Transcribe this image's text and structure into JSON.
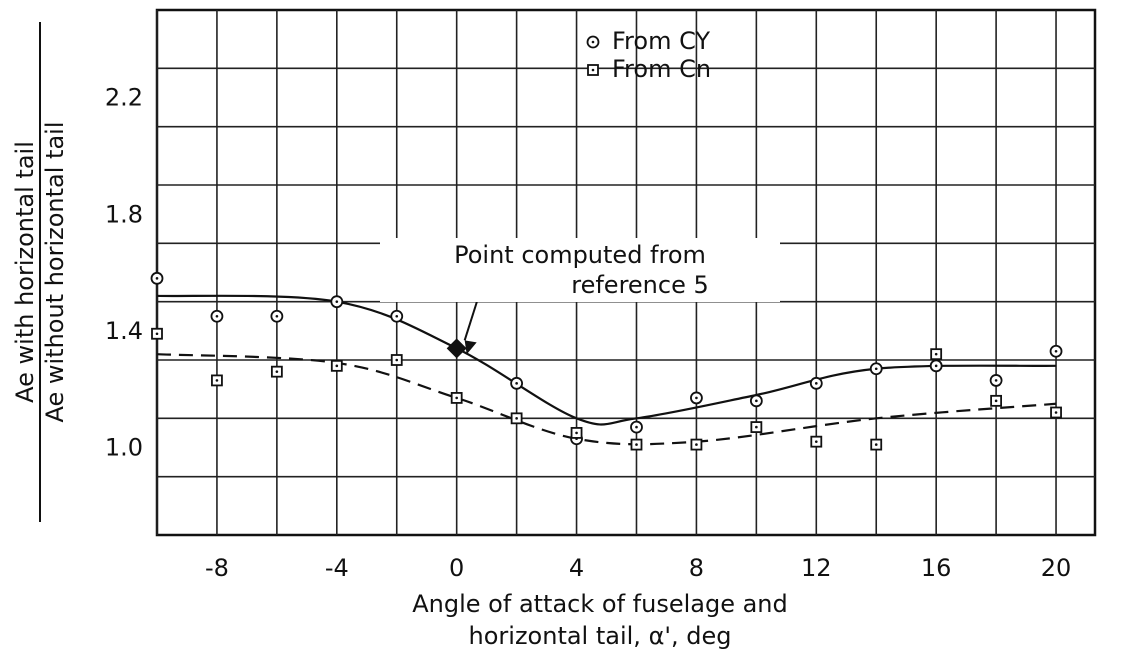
{
  "chart_data": {
    "type": "scatter",
    "ylabel_numerator": "Ae with horizontal tail",
    "ylabel_denominator": "Ae without horizontal tail",
    "xlabel": [
      "Angle of attack of fuselage and",
      "horizontal tail, α', deg"
    ],
    "xlim": [
      -10,
      21.3
    ],
    "ylim": [
      0.8,
      2.6
    ],
    "xticks": [
      -8,
      -4,
      0,
      4,
      8,
      12,
      16,
      20
    ],
    "x_minor_ticks": [
      -10,
      -6,
      -2,
      2,
      6,
      10,
      14,
      18
    ],
    "yticks": [
      {
        "value": 1,
        "label": "1.0"
      },
      1.4,
      1.8,
      2.2
    ],
    "y_minor_ticks": [
      1.2,
      1.6,
      2,
      2.4
    ],
    "grid": true,
    "series": [
      {
        "name": "From CY",
        "marker": "circle",
        "color": "#111",
        "x": [
          -10,
          -8,
          -6,
          -4,
          -2,
          0,
          2,
          4,
          6,
          8,
          10,
          12,
          14,
          16,
          18,
          20
        ],
        "values": [
          1.68,
          1.55,
          1.55,
          1.6,
          1.55,
          1.44,
          1.32,
          1.13,
          1.17,
          1.27,
          1.26,
          1.32,
          1.37,
          1.38,
          1.33,
          1.43
        ]
      },
      {
        "name": "From Cn",
        "marker": "square",
        "color": "#111",
        "x": [
          -10,
          -8,
          -6,
          -4,
          -2,
          0,
          2,
          4,
          6,
          8,
          10,
          12,
          14,
          16,
          18,
          20
        ],
        "values": [
          1.49,
          1.33,
          1.36,
          1.38,
          1.4,
          1.27,
          1.2,
          1.15,
          1.11,
          1.11,
          1.17,
          1.12,
          1.11,
          1.42,
          1.26,
          1.22
        ]
      }
    ],
    "curves": [
      {
        "style": "solid",
        "x": [
          -10,
          -4,
          0,
          4,
          6,
          10,
          14,
          20
        ],
        "values": [
          1.62,
          1.6,
          1.44,
          1.2,
          1.2,
          1.28,
          1.37,
          1.38
        ]
      },
      {
        "style": "dashed",
        "x": [
          -10,
          -4,
          0,
          4,
          8,
          14,
          20
        ],
        "values": [
          1.42,
          1.39,
          1.27,
          1.13,
          1.12,
          1.2,
          1.25
        ]
      }
    ],
    "annotation": {
      "text": [
        "Point computed from",
        "reference 5"
      ],
      "x": 0,
      "value": 1.44
    }
  }
}
